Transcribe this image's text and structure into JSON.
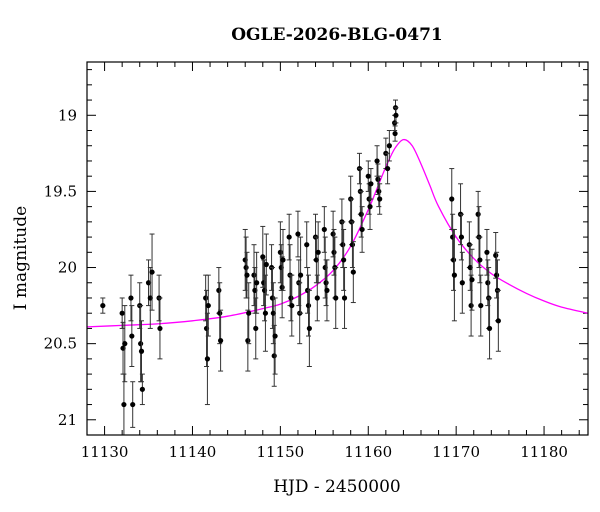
{
  "chart_data": {
    "type": "scatter",
    "title": "OGLE-2026-BLG-0471",
    "xlabel": "HJD - 2450000",
    "ylabel": "I magnitude",
    "xlim": [
      11128,
      11185
    ],
    "ylim": [
      21.1,
      18.65
    ],
    "y_inverted": true,
    "x_ticks": [
      11130,
      11140,
      11150,
      11160,
      11170,
      11180
    ],
    "y_ticks": [
      19,
      19.5,
      20,
      20.5,
      21
    ],
    "x_tick_labels": [
      "11130",
      "11140",
      "11150",
      "11160",
      "11170",
      "11180"
    ],
    "y_tick_labels": [
      "19",
      "19.5",
      "20",
      "20.5",
      "21"
    ],
    "grid": false,
    "colors": {
      "model": "#ff00ff",
      "points": "#000000",
      "errorbars": "#333333"
    },
    "model": {
      "name": "",
      "points": [
        [
          11128,
          20.39
        ],
        [
          11132,
          20.38
        ],
        [
          11136,
          20.37
        ],
        [
          11140,
          20.35
        ],
        [
          11144,
          20.32
        ],
        [
          11148,
          20.27
        ],
        [
          11150,
          20.24
        ],
        [
          11152,
          20.19
        ],
        [
          11154,
          20.12
        ],
        [
          11156,
          20.02
        ],
        [
          11158,
          19.86
        ],
        [
          11160,
          19.62
        ],
        [
          11161,
          19.48
        ],
        [
          11162,
          19.34
        ],
        [
          11163,
          19.22
        ],
        [
          11164,
          19.16
        ],
        [
          11165,
          19.2
        ],
        [
          11166,
          19.32
        ],
        [
          11167,
          19.46
        ],
        [
          11168,
          19.6
        ],
        [
          11170,
          19.8
        ],
        [
          11172,
          19.94
        ],
        [
          11174,
          20.04
        ],
        [
          11176,
          20.11
        ],
        [
          11178,
          20.17
        ],
        [
          11180,
          20.22
        ],
        [
          11182,
          20.26
        ],
        [
          11185,
          20.3
        ]
      ]
    },
    "series": [
      {
        "name": "",
        "points": [
          [
            11129.8,
            20.25,
            0.05
          ],
          [
            11132,
            20.3,
            0.1
          ],
          [
            11132.1,
            20.53,
            0.17
          ],
          [
            11132.2,
            20.9,
            0.2
          ],
          [
            11132.3,
            20.5,
            0.25
          ],
          [
            11133,
            20.2,
            0.15
          ],
          [
            11133.1,
            20.45,
            0.2
          ],
          [
            11133.2,
            20.9,
            0.15
          ],
          [
            11134,
            20.25,
            0.15
          ],
          [
            11134.1,
            20.5,
            0.25
          ],
          [
            11134.2,
            20.55,
            0.2
          ],
          [
            11134.3,
            20.8,
            0.1
          ],
          [
            11135,
            20.1,
            0.15
          ],
          [
            11135.2,
            20.2,
            0.2
          ],
          [
            11135.4,
            20.03,
            0.25
          ],
          [
            11136.2,
            20.2,
            0.15
          ],
          [
            11136.3,
            20.4,
            0.2
          ],
          [
            11141.5,
            20.2,
            0.15
          ],
          [
            11141.6,
            20.4,
            0.25
          ],
          [
            11141.7,
            20.6,
            0.3
          ],
          [
            11141.8,
            20.25,
            0.2
          ],
          [
            11143,
            20.15,
            0.15
          ],
          [
            11143.1,
            20.3,
            0.2
          ],
          [
            11143.2,
            20.48,
            0.2
          ],
          [
            11146,
            19.95,
            0.2
          ],
          [
            11146.1,
            20.0,
            0.2
          ],
          [
            11146.2,
            20.05,
            0.15
          ],
          [
            11146.3,
            20.48,
            0.2
          ],
          [
            11146.4,
            20.3,
            0.2
          ],
          [
            11147,
            20.05,
            0.2
          ],
          [
            11147.1,
            20.15,
            0.15
          ],
          [
            11147.2,
            20.4,
            0.2
          ],
          [
            11147.3,
            20.1,
            0.2
          ],
          [
            11148,
            19.93,
            0.2
          ],
          [
            11148.1,
            20.1,
            0.15
          ],
          [
            11148.2,
            20.15,
            0.2
          ],
          [
            11148.3,
            20.3,
            0.25
          ],
          [
            11148.4,
            19.98,
            0.2
          ],
          [
            11149,
            20.0,
            0.15
          ],
          [
            11149.1,
            20.2,
            0.2
          ],
          [
            11149.2,
            20.3,
            0.2
          ],
          [
            11149.3,
            20.58,
            0.2
          ],
          [
            11149.4,
            20.45,
            0.25
          ],
          [
            11150,
            19.9,
            0.2
          ],
          [
            11150.1,
            20.0,
            0.15
          ],
          [
            11150.2,
            20.13,
            0.2
          ],
          [
            11150.3,
            19.95,
            0.2
          ],
          [
            11151,
            19.8,
            0.15
          ],
          [
            11151.1,
            20.05,
            0.2
          ],
          [
            11151.2,
            20.2,
            0.15
          ],
          [
            11151.3,
            20.25,
            0.2
          ],
          [
            11152,
            19.78,
            0.15
          ],
          [
            11152.1,
            20.1,
            0.15
          ],
          [
            11152.2,
            20.3,
            0.2
          ],
          [
            11152.3,
            20.05,
            0.25
          ],
          [
            11153,
            19.85,
            0.15
          ],
          [
            11153.1,
            20.15,
            0.15
          ],
          [
            11153.2,
            20.25,
            0.2
          ],
          [
            11153.3,
            20.4,
            0.25
          ],
          [
            11154,
            19.8,
            0.15
          ],
          [
            11154.1,
            19.95,
            0.15
          ],
          [
            11154.2,
            20.2,
            0.15
          ],
          [
            11154.3,
            19.9,
            0.2
          ],
          [
            11155,
            19.75,
            0.15
          ],
          [
            11155.1,
            20.0,
            0.2
          ],
          [
            11155.2,
            20.1,
            0.15
          ],
          [
            11155.3,
            20.15,
            0.2
          ],
          [
            11156,
            19.78,
            0.15
          ],
          [
            11156.1,
            19.9,
            0.15
          ],
          [
            11156.2,
            20.0,
            0.2
          ],
          [
            11156.3,
            20.2,
            0.2
          ],
          [
            11157,
            19.7,
            0.15
          ],
          [
            11157.1,
            19.85,
            0.15
          ],
          [
            11157.2,
            19.95,
            0.2
          ],
          [
            11157.3,
            20.2,
            0.2
          ],
          [
            11158,
            19.55,
            0.15
          ],
          [
            11158.1,
            19.7,
            0.15
          ],
          [
            11158.2,
            19.85,
            0.15
          ],
          [
            11158.3,
            20.03,
            0.2
          ],
          [
            11159,
            19.35,
            0.1
          ],
          [
            11159.1,
            19.5,
            0.15
          ],
          [
            11159.2,
            19.65,
            0.15
          ],
          [
            11159.3,
            19.75,
            0.15
          ],
          [
            11160,
            19.4,
            0.1
          ],
          [
            11160.1,
            19.55,
            0.1
          ],
          [
            11160.2,
            19.6,
            0.15
          ],
          [
            11160.3,
            19.45,
            0.1
          ],
          [
            11161,
            19.3,
            0.1
          ],
          [
            11161.1,
            19.42,
            0.1
          ],
          [
            11161.2,
            19.5,
            0.1
          ],
          [
            11161.3,
            19.55,
            0.1
          ],
          [
            11162,
            19.25,
            0.1
          ],
          [
            11162.2,
            19.35,
            0.1
          ],
          [
            11162.4,
            19.2,
            0.1
          ],
          [
            11163,
            19.05,
            0.05
          ],
          [
            11163.05,
            19.12,
            0.05
          ],
          [
            11163.1,
            18.95,
            0.05
          ],
          [
            11163.15,
            19.0,
            0.05
          ],
          [
            11169.5,
            19.55,
            0.2
          ],
          [
            11169.6,
            19.8,
            0.15
          ],
          [
            11169.7,
            19.95,
            0.2
          ],
          [
            11169.8,
            20.05,
            0.3
          ],
          [
            11170.5,
            19.65,
            0.2
          ],
          [
            11170.6,
            19.8,
            0.15
          ],
          [
            11170.7,
            20.1,
            0.2
          ],
          [
            11171.5,
            19.85,
            0.15
          ],
          [
            11171.6,
            20.0,
            0.15
          ],
          [
            11171.7,
            20.25,
            0.2
          ],
          [
            11171.8,
            20.08,
            0.2
          ],
          [
            11172.5,
            19.65,
            0.15
          ],
          [
            11172.6,
            19.8,
            0.2
          ],
          [
            11172.7,
            19.95,
            0.15
          ],
          [
            11172.8,
            20.25,
            0.2
          ],
          [
            11173.5,
            19.9,
            0.15
          ],
          [
            11173.6,
            20.1,
            0.15
          ],
          [
            11173.7,
            20.2,
            0.2
          ],
          [
            11173.8,
            20.4,
            0.2
          ],
          [
            11174.5,
            19.92,
            0.15
          ],
          [
            11174.6,
            20.05,
            0.15
          ],
          [
            11174.7,
            20.15,
            0.2
          ],
          [
            11174.8,
            20.35,
            0.2
          ]
        ]
      }
    ]
  }
}
